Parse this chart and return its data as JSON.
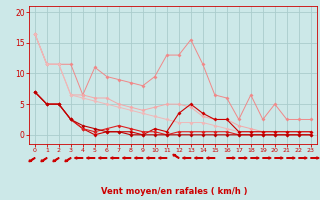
{
  "title": "",
  "xlabel": "Vent moyen/en rafales ( km/h )",
  "background_color": "#cce8e8",
  "grid_color": "#aacccc",
  "x_ticks": [
    0,
    1,
    2,
    3,
    4,
    5,
    6,
    7,
    8,
    9,
    10,
    11,
    12,
    13,
    14,
    15,
    16,
    17,
    18,
    19,
    20,
    21,
    22,
    23
  ],
  "ylim": [
    -1.5,
    21
  ],
  "xlim": [
    -0.5,
    23.5
  ],
  "yticks": [
    0,
    5,
    10,
    15,
    20
  ],
  "series_light": [
    {
      "x": [
        0,
        1,
        2,
        3,
        4,
        5,
        6,
        7,
        8,
        9,
        10,
        11,
        12,
        13,
        14,
        15,
        16,
        17,
        18,
        19,
        20,
        21,
        22,
        23
      ],
      "y": [
        16.5,
        11.5,
        11.5,
        11.5,
        6.5,
        11.0,
        9.5,
        9.0,
        8.5,
        8.0,
        9.5,
        13.0,
        13.0,
        15.5,
        11.5,
        6.5,
        6.0,
        2.5,
        6.5,
        2.5,
        5.0,
        2.5,
        2.5,
        2.5
      ],
      "color": "#f08888"
    },
    {
      "x": [
        0,
        1,
        2,
        3,
        4,
        5,
        6,
        7,
        8,
        9,
        10,
        11,
        12,
        13,
        14,
        15,
        16,
        17,
        18,
        19,
        20,
        21,
        22,
        23
      ],
      "y": [
        16.5,
        11.5,
        11.5,
        6.5,
        6.5,
        6.0,
        6.0,
        5.0,
        4.5,
        4.0,
        4.5,
        5.0,
        5.0,
        4.5,
        3.0,
        2.5,
        2.5,
        1.5,
        1.0,
        0.5,
        0.5,
        0.5,
        0.5,
        0.5
      ],
      "color": "#f4a8a8"
    },
    {
      "x": [
        0,
        1,
        2,
        3,
        4,
        5,
        6,
        7,
        8,
        9,
        10,
        11,
        12,
        13,
        14,
        15,
        16,
        17,
        18,
        19,
        20,
        21,
        22,
        23
      ],
      "y": [
        16.5,
        11.5,
        11.5,
        6.5,
        6.0,
        5.5,
        5.0,
        4.5,
        4.0,
        3.5,
        3.0,
        2.5,
        2.0,
        2.0,
        2.0,
        1.5,
        1.0,
        0.5,
        0.5,
        0.5,
        0.5,
        0.5,
        0.5,
        0.5
      ],
      "color": "#f0b8b8"
    }
  ],
  "series_dark": [
    {
      "x": [
        0,
        1,
        2,
        3,
        4,
        5,
        6,
        7,
        8,
        9,
        10,
        11,
        12,
        13,
        14,
        15,
        16,
        17,
        18,
        19,
        20,
        21,
        22,
        23
      ],
      "y": [
        7.0,
        5.0,
        5.0,
        2.5,
        1.0,
        0.0,
        0.5,
        0.5,
        0.5,
        0.0,
        1.0,
        0.5,
        3.5,
        5.0,
        3.5,
        2.5,
        2.5,
        0.5,
        0.5,
        0.5,
        0.5,
        0.5,
        0.5,
        0.5
      ],
      "color": "#cc0000"
    },
    {
      "x": [
        0,
        1,
        2,
        3,
        4,
        5,
        6,
        7,
        8,
        9,
        10,
        11,
        12,
        13,
        14,
        15,
        16,
        17,
        18,
        19,
        20,
        21,
        22,
        23
      ],
      "y": [
        7.0,
        5.0,
        5.0,
        2.5,
        1.0,
        0.5,
        1.0,
        1.5,
        1.0,
        0.5,
        0.5,
        0.0,
        0.5,
        0.5,
        0.5,
        0.5,
        0.5,
        0.0,
        0.0,
        0.0,
        0.0,
        0.0,
        0.0,
        0.0
      ],
      "color": "#dd2020"
    },
    {
      "x": [
        0,
        1,
        2,
        3,
        4,
        5,
        6,
        7,
        8,
        9,
        10,
        11,
        12,
        13,
        14,
        15,
        16,
        17,
        18,
        19,
        20,
        21,
        22,
        23
      ],
      "y": [
        7.0,
        5.0,
        5.0,
        2.5,
        1.5,
        1.0,
        0.5,
        0.5,
        0.0,
        0.0,
        0.0,
        0.0,
        0.0,
        0.0,
        0.0,
        0.0,
        0.0,
        0.0,
        0.0,
        0.0,
        0.0,
        0.0,
        0.0,
        0.0
      ],
      "color": "#bb0000"
    }
  ],
  "wind_arrows": {
    "x": [
      0,
      1,
      2,
      3,
      4,
      5,
      6,
      7,
      8,
      9,
      10,
      11,
      12,
      13,
      14,
      15,
      16,
      17,
      18,
      19,
      20,
      21,
      22,
      23
    ],
    "angles": [
      225,
      225,
      225,
      225,
      270,
      270,
      270,
      270,
      270,
      270,
      270,
      270,
      315,
      270,
      270,
      270,
      90,
      90,
      90,
      90,
      90,
      90,
      90,
      90
    ]
  }
}
